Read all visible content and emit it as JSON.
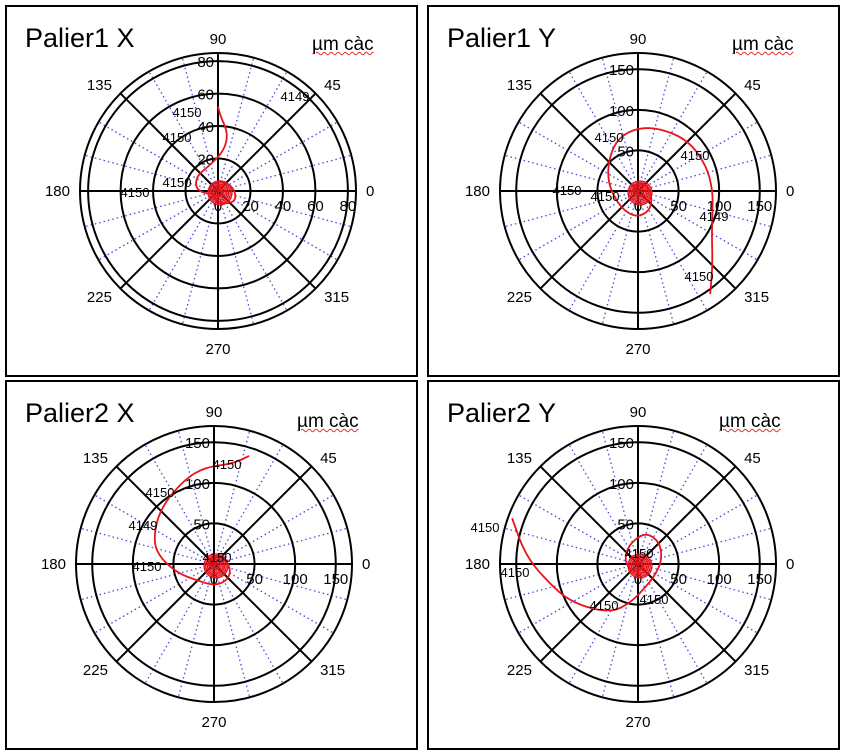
{
  "chart_data": [
    {
      "type": "polar",
      "title": "Palier1 X",
      "unit": "µm càc",
      "angle_ticks": [
        "0",
        "45",
        "90",
        "135",
        "180",
        "225",
        "270",
        "315"
      ],
      "radial_ticks": [
        "0",
        "20",
        "40",
        "60",
        "80"
      ],
      "rmax": 85,
      "grid": true,
      "series": [
        {
          "color": "#e8141b",
          "points": [
            [
              52,
              90
            ],
            [
              46,
              88
            ],
            [
              38,
              82
            ],
            [
              32,
              80
            ],
            [
              26,
              82
            ],
            [
              20,
              92
            ],
            [
              16,
              115
            ],
            [
              16,
              145
            ],
            [
              14,
              170
            ],
            [
              10,
              185
            ],
            [
              6,
              195
            ],
            [
              4,
              200
            ],
            [
              6,
              260
            ],
            [
              8,
              290
            ],
            [
              10,
              310
            ],
            [
              12,
              330
            ],
            [
              11,
              350
            ],
            [
              9,
              20
            ],
            [
              7,
              80
            ],
            [
              6,
              140
            ],
            [
              5,
              200
            ],
            [
              4,
              260
            ],
            [
              3,
              320
            ],
            [
              2,
              20
            ],
            [
              1,
              90
            ],
            [
              0,
              0
            ]
          ]
        }
      ],
      "annotations": [
        "4149",
        "4150",
        "4150",
        "4150",
        "4150"
      ]
    },
    {
      "type": "polar",
      "title": "Palier1 Y",
      "unit": "µm càc",
      "angle_ticks": [
        "0",
        "45",
        "90",
        "135",
        "180",
        "225",
        "270",
        "315"
      ],
      "radial_ticks": [
        "0",
        "50",
        "100",
        "150"
      ],
      "rmax": 170,
      "grid": true,
      "series": [
        {
          "color": "#e8141b",
          "points": [
            [
              155,
              305
            ],
            [
              130,
              315
            ],
            [
              105,
              330
            ],
            [
              95,
              345
            ],
            [
              92,
              0
            ],
            [
              90,
              20
            ],
            [
              88,
              45
            ],
            [
              82,
              70
            ],
            [
              78,
              90
            ],
            [
              70,
              110
            ],
            [
              55,
              130
            ],
            [
              40,
              160
            ],
            [
              30,
              200
            ],
            [
              30,
              240
            ],
            [
              32,
              270
            ],
            [
              28,
              300
            ],
            [
              20,
              330
            ],
            [
              14,
              20
            ],
            [
              10,
              80
            ],
            [
              8,
              140
            ],
            [
              6,
              200
            ],
            [
              4,
              260
            ],
            [
              2,
              320
            ],
            [
              0,
              0
            ]
          ]
        }
      ],
      "annotations": [
        "4150",
        "4150",
        "4150",
        "4150",
        "4149",
        "4150"
      ]
    },
    {
      "type": "polar",
      "title": "Palier2 X",
      "unit": "µm càc",
      "angle_ticks": [
        "0",
        "45",
        "90",
        "135",
        "180",
        "225",
        "270",
        "315"
      ],
      "radial_ticks": [
        "0",
        "50",
        "100",
        "150"
      ],
      "rmax": 170,
      "grid": true,
      "series": [
        {
          "color": "#e8141b",
          "points": [
            [
              140,
              72
            ],
            [
              125,
              80
            ],
            [
              120,
              95
            ],
            [
              110,
              110
            ],
            [
              95,
              135
            ],
            [
              80,
              160
            ],
            [
              65,
              175
            ],
            [
              45,
              195
            ],
            [
              30,
              220
            ],
            [
              26,
              260
            ],
            [
              26,
              290
            ],
            [
              25,
              320
            ],
            [
              20,
              350
            ],
            [
              14,
              30
            ],
            [
              10,
              90
            ],
            [
              8,
              150
            ],
            [
              6,
              210
            ],
            [
              4,
              270
            ],
            [
              2,
              330
            ],
            [
              0,
              0
            ]
          ]
        }
      ],
      "annotations": [
        "4150",
        "4150",
        "4149",
        "4150",
        "4150"
      ]
    },
    {
      "type": "polar",
      "title": "Palier2 Y",
      "unit": "µm càc",
      "angle_ticks": [
        "0",
        "45",
        "90",
        "135",
        "180",
        "225",
        "270",
        "315"
      ],
      "radial_ticks": [
        "0",
        "50",
        "100",
        "150"
      ],
      "rmax": 170,
      "grid": true,
      "series": [
        {
          "color": "#e8141b",
          "points": [
            [
              165,
              160
            ],
            [
              140,
              175
            ],
            [
              115,
              190
            ],
            [
              95,
              210
            ],
            [
              70,
              240
            ],
            [
              48,
              260
            ],
            [
              28,
              295
            ],
            [
              25,
              330
            ],
            [
              30,
              10
            ],
            [
              38,
              45
            ],
            [
              40,
              75
            ],
            [
              30,
              100
            ],
            [
              22,
              130
            ],
            [
              16,
              170
            ],
            [
              12,
              220
            ],
            [
              9,
              270
            ],
            [
              7,
              320
            ],
            [
              5,
              20
            ],
            [
              3,
              90
            ],
            [
              0,
              0
            ]
          ]
        }
      ],
      "annotations": [
        "4150",
        "4150",
        "4150",
        "4150",
        "4150"
      ]
    }
  ]
}
